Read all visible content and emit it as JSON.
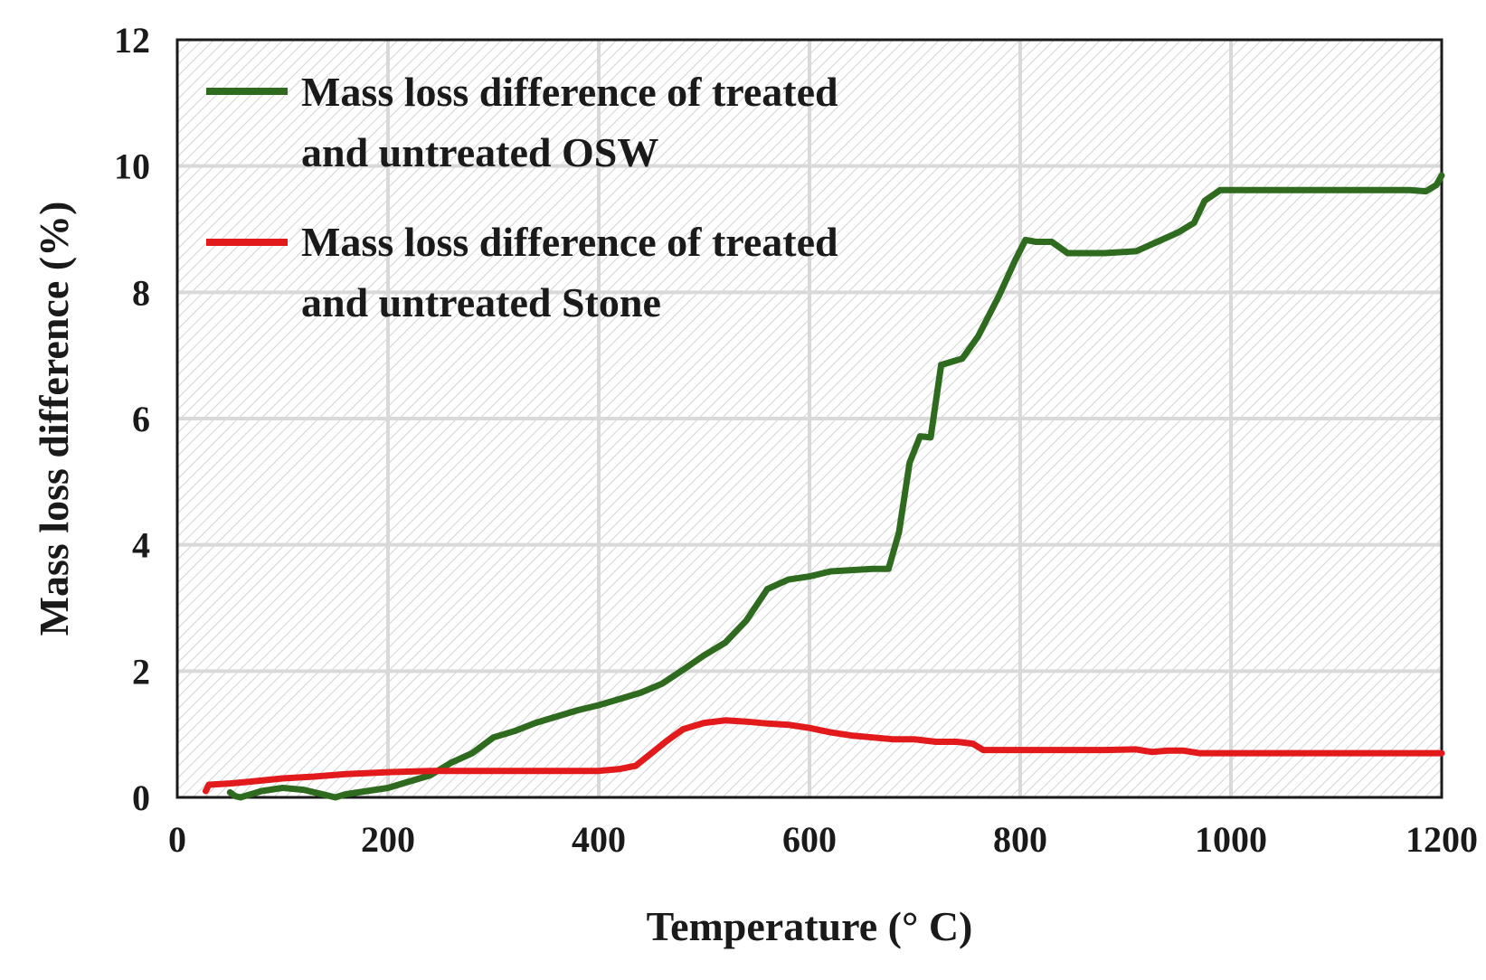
{
  "chart_data": {
    "type": "line",
    "title": "",
    "xlabel": "Temperature (° C)",
    "ylabel": "Mass loss difference (%)",
    "xlim": [
      0,
      1200
    ],
    "ylim": [
      0,
      12
    ],
    "x_ticks": [
      "0",
      "200",
      "400",
      "600",
      "800",
      "1000",
      "1200"
    ],
    "y_ticks": [
      "0",
      "2",
      "4",
      "6",
      "8",
      "10",
      "12"
    ],
    "grid": true,
    "background": "hatched",
    "legend_position": "top-left",
    "series": [
      {
        "name_line1": "Mass loss difference of treated",
        "name_line2": "and untreated OSW",
        "color": "#2e6b1f",
        "points": [
          [
            50,
            0.08
          ],
          [
            55,
            0.02
          ],
          [
            60,
            0.0
          ],
          [
            70,
            0.05
          ],
          [
            80,
            0.1
          ],
          [
            100,
            0.15
          ],
          [
            120,
            0.12
          ],
          [
            140,
            0.04
          ],
          [
            150,
            0.0
          ],
          [
            160,
            0.05
          ],
          [
            180,
            0.1
          ],
          [
            200,
            0.15
          ],
          [
            220,
            0.25
          ],
          [
            240,
            0.35
          ],
          [
            260,
            0.55
          ],
          [
            280,
            0.7
          ],
          [
            300,
            0.95
          ],
          [
            320,
            1.05
          ],
          [
            340,
            1.18
          ],
          [
            360,
            1.28
          ],
          [
            380,
            1.38
          ],
          [
            400,
            1.46
          ],
          [
            420,
            1.56
          ],
          [
            440,
            1.66
          ],
          [
            460,
            1.8
          ],
          [
            480,
            2.02
          ],
          [
            500,
            2.25
          ],
          [
            520,
            2.45
          ],
          [
            540,
            2.8
          ],
          [
            560,
            3.3
          ],
          [
            580,
            3.45
          ],
          [
            600,
            3.5
          ],
          [
            620,
            3.58
          ],
          [
            640,
            3.6
          ],
          [
            660,
            3.62
          ],
          [
            675,
            3.62
          ],
          [
            685,
            4.2
          ],
          [
            695,
            5.3
          ],
          [
            705,
            5.72
          ],
          [
            715,
            5.7
          ],
          [
            725,
            6.85
          ],
          [
            735,
            6.9
          ],
          [
            745,
            6.95
          ],
          [
            760,
            7.3
          ],
          [
            780,
            7.95
          ],
          [
            795,
            8.5
          ],
          [
            805,
            8.83
          ],
          [
            815,
            8.8
          ],
          [
            830,
            8.8
          ],
          [
            845,
            8.62
          ],
          [
            860,
            8.62
          ],
          [
            880,
            8.62
          ],
          [
            910,
            8.65
          ],
          [
            930,
            8.8
          ],
          [
            950,
            8.95
          ],
          [
            965,
            9.1
          ],
          [
            975,
            9.45
          ],
          [
            990,
            9.62
          ],
          [
            1020,
            9.62
          ],
          [
            1060,
            9.62
          ],
          [
            1100,
            9.62
          ],
          [
            1140,
            9.62
          ],
          [
            1170,
            9.62
          ],
          [
            1185,
            9.6
          ],
          [
            1195,
            9.7
          ],
          [
            1200,
            9.85
          ]
        ]
      },
      {
        "name_line1": "Mass loss difference of treated",
        "name_line2": "and untreated Stone",
        "color": "#e31a1c",
        "points": [
          [
            27,
            0.1
          ],
          [
            30,
            0.2
          ],
          [
            50,
            0.22
          ],
          [
            70,
            0.25
          ],
          [
            100,
            0.3
          ],
          [
            130,
            0.33
          ],
          [
            160,
            0.37
          ],
          [
            200,
            0.4
          ],
          [
            240,
            0.42
          ],
          [
            280,
            0.42
          ],
          [
            320,
            0.42
          ],
          [
            360,
            0.42
          ],
          [
            400,
            0.42
          ],
          [
            420,
            0.45
          ],
          [
            435,
            0.5
          ],
          [
            450,
            0.7
          ],
          [
            465,
            0.9
          ],
          [
            480,
            1.08
          ],
          [
            500,
            1.18
          ],
          [
            520,
            1.22
          ],
          [
            540,
            1.2
          ],
          [
            560,
            1.17
          ],
          [
            580,
            1.15
          ],
          [
            600,
            1.1
          ],
          [
            620,
            1.03
          ],
          [
            640,
            0.98
          ],
          [
            660,
            0.95
          ],
          [
            680,
            0.92
          ],
          [
            700,
            0.92
          ],
          [
            720,
            0.88
          ],
          [
            740,
            0.88
          ],
          [
            755,
            0.85
          ],
          [
            765,
            0.75
          ],
          [
            780,
            0.75
          ],
          [
            800,
            0.75
          ],
          [
            850,
            0.75
          ],
          [
            880,
            0.75
          ],
          [
            910,
            0.76
          ],
          [
            925,
            0.72
          ],
          [
            940,
            0.74
          ],
          [
            955,
            0.74
          ],
          [
            970,
            0.7
          ],
          [
            1000,
            0.7
          ],
          [
            1050,
            0.7
          ],
          [
            1100,
            0.7
          ],
          [
            1150,
            0.7
          ],
          [
            1200,
            0.7
          ]
        ]
      }
    ]
  }
}
